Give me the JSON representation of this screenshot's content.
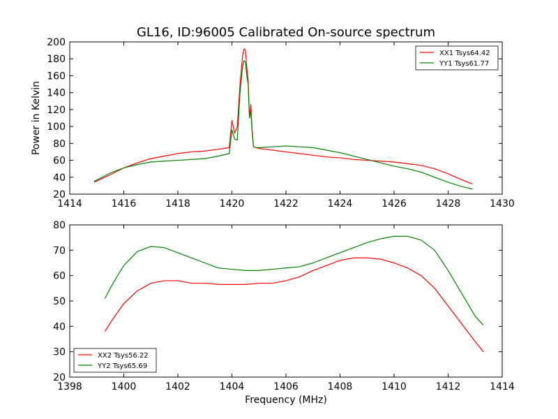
{
  "chart_data": [
    {
      "type": "line",
      "title": "GL16, ID:96005 Calibrated On-source spectrum",
      "xlabel": "",
      "ylabel": "Power in Kelvin",
      "xlim": [
        1414,
        1430
      ],
      "ylim": [
        20,
        200
      ],
      "xticks": [
        1414,
        1416,
        1418,
        1420,
        1422,
        1424,
        1426,
        1428,
        1430
      ],
      "yticks": [
        20,
        40,
        60,
        80,
        100,
        120,
        140,
        160,
        180,
        200
      ],
      "grid": false,
      "legend_position": "top-right",
      "series": [
        {
          "name": "XX1 Tsys64.42",
          "color": "#ff0000",
          "x": [
            1414.9,
            1415.5,
            1416.0,
            1416.5,
            1417.0,
            1417.5,
            1418.0,
            1418.5,
            1419.0,
            1419.5,
            1419.9,
            1420.0,
            1420.1,
            1420.2,
            1420.3,
            1420.4,
            1420.45,
            1420.5,
            1420.55,
            1420.6,
            1420.65,
            1420.7,
            1420.75,
            1420.8,
            1420.9,
            1421.0,
            1421.5,
            1422.0,
            1422.5,
            1423.0,
            1423.5,
            1424.0,
            1424.5,
            1425.0,
            1425.5,
            1426.0,
            1426.5,
            1427.0,
            1427.5,
            1428.0,
            1428.5,
            1428.9
          ],
          "values": [
            34,
            43,
            51,
            57,
            62,
            65,
            68,
            70,
            71,
            73,
            75,
            107,
            92,
            100,
            150,
            185,
            192,
            190,
            170,
            155,
            110,
            126,
            95,
            76,
            75,
            74,
            72,
            70,
            68,
            66,
            64,
            63,
            61,
            60,
            59,
            58,
            56,
            54,
            50,
            44,
            37,
            32
          ]
        },
        {
          "name": "YY1 Tsys61.77",
          "color": "#008000",
          "x": [
            1414.9,
            1415.5,
            1416.0,
            1416.5,
            1417.0,
            1417.5,
            1418.0,
            1418.5,
            1419.0,
            1419.5,
            1419.9,
            1420.0,
            1420.1,
            1420.2,
            1420.3,
            1420.4,
            1420.45,
            1420.5,
            1420.55,
            1420.6,
            1420.65,
            1420.7,
            1420.75,
            1420.8,
            1420.9,
            1421.0,
            1421.5,
            1422.0,
            1422.5,
            1423.0,
            1423.5,
            1424.0,
            1424.5,
            1425.0,
            1425.5,
            1426.0,
            1426.5,
            1427.0,
            1427.5,
            1428.0,
            1428.5,
            1428.9
          ],
          "values": [
            35,
            45,
            51,
            55,
            58,
            59,
            60,
            61,
            62,
            65,
            68,
            96,
            85,
            84,
            140,
            172,
            178,
            176,
            160,
            150,
            110,
            118,
            92,
            76,
            75,
            75,
            76,
            77,
            76,
            75,
            72,
            69,
            65,
            61,
            57,
            53,
            50,
            46,
            40,
            34,
            29,
            26
          ]
        }
      ]
    },
    {
      "type": "line",
      "title": "",
      "xlabel": "Frequency (MHz)",
      "ylabel": "",
      "xlim": [
        1398,
        1414
      ],
      "ylim": [
        20,
        80
      ],
      "xticks": [
        1398,
        1400,
        1402,
        1404,
        1406,
        1408,
        1410,
        1412,
        1414
      ],
      "yticks": [
        20,
        30,
        40,
        50,
        60,
        70,
        80
      ],
      "grid": false,
      "legend_position": "bottom-left",
      "series": [
        {
          "name": "XX2 Tsys56.22",
          "color": "#ff0000",
          "x": [
            1399.3,
            1399.6,
            1400.0,
            1400.5,
            1401.0,
            1401.5,
            1402.0,
            1402.5,
            1403.0,
            1403.5,
            1404.0,
            1404.5,
            1405.0,
            1405.5,
            1406.0,
            1406.5,
            1407.0,
            1407.5,
            1408.0,
            1408.5,
            1409.0,
            1409.5,
            1410.0,
            1410.5,
            1411.0,
            1411.5,
            1412.0,
            1412.5,
            1413.0,
            1413.3
          ],
          "values": [
            38,
            43,
            49,
            54,
            57,
            58,
            58,
            57,
            57,
            56.5,
            56.5,
            56.5,
            57,
            57,
            58,
            59.5,
            62,
            64,
            66,
            67,
            67,
            66.5,
            65,
            63,
            60,
            55,
            48,
            41,
            34,
            30
          ]
        },
        {
          "name": "YY2 Tsys65.69",
          "color": "#008000",
          "x": [
            1399.3,
            1399.6,
            1400.0,
            1400.5,
            1401.0,
            1401.5,
            1402.0,
            1402.5,
            1403.0,
            1403.5,
            1404.0,
            1404.5,
            1405.0,
            1405.5,
            1406.0,
            1406.5,
            1407.0,
            1407.5,
            1408.0,
            1408.5,
            1409.0,
            1409.5,
            1410.0,
            1410.5,
            1411.0,
            1411.5,
            1412.0,
            1412.5,
            1413.0,
            1413.3
          ],
          "values": [
            51,
            57,
            64,
            69.5,
            71.5,
            71,
            69,
            67,
            65,
            63,
            62.5,
            62,
            62,
            62.5,
            63,
            63.5,
            65,
            67,
            69,
            71,
            73,
            74.5,
            75.5,
            75.5,
            74,
            70,
            62,
            53,
            44,
            40.5
          ]
        }
      ]
    }
  ]
}
